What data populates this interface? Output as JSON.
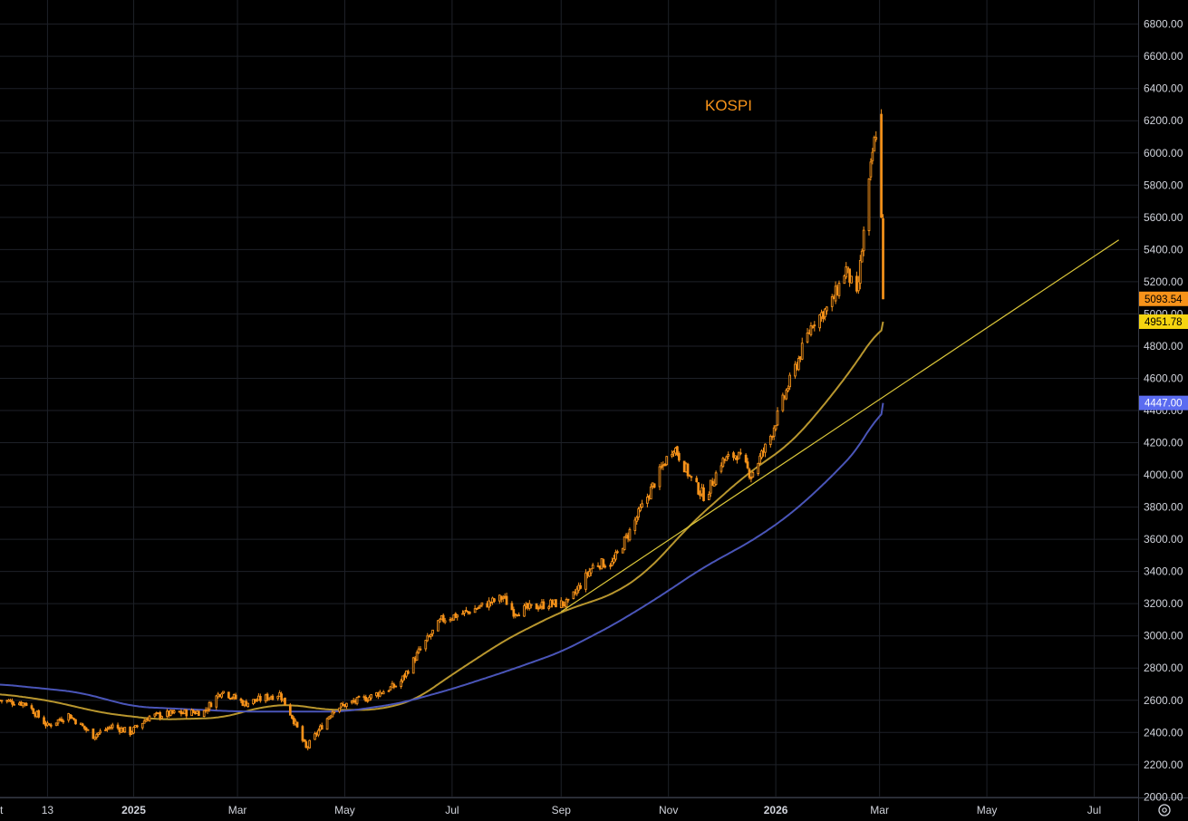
{
  "chart_data": {
    "type": "candlestick",
    "annotation": "KOSPI",
    "y_ticks": [
      2000,
      2200,
      2400,
      2600,
      2800,
      3000,
      3200,
      3400,
      3600,
      3800,
      4000,
      4200,
      4400,
      4600,
      4800,
      5000,
      5200,
      5400,
      5600,
      5800,
      6000,
      6200,
      6400,
      6600,
      6800
    ],
    "y_tick_labels": [
      "2000.00",
      "2200.00",
      "2400.00",
      "2600.00",
      "2800.00",
      "3000.00",
      "3200.00",
      "3400.00",
      "3600.00",
      "3800.00",
      "4000.00",
      "4200.00",
      "4400.00",
      "4600.00",
      "4800.00",
      "5000.00",
      "5200.00",
      "5400.00",
      "5600.00",
      "5800.00",
      "6000.00",
      "6200.00",
      "6400.00",
      "6600.00",
      "6800.00"
    ],
    "ylim": [
      1850,
      6950
    ],
    "xlim": [
      "2024-10-17",
      "2026-07-26"
    ],
    "x_ticks": [
      {
        "date": "2024-10-15",
        "label": "t",
        "bold": false
      },
      {
        "date": "2024-11-13",
        "label": "13",
        "bold": false
      },
      {
        "date": "2025-01-01",
        "label": "2025",
        "bold": true
      },
      {
        "date": "2025-03-01",
        "label": "Mar",
        "bold": false
      },
      {
        "date": "2025-05-01",
        "label": "May",
        "bold": false
      },
      {
        "date": "2025-07-01",
        "label": "Jul",
        "bold": false
      },
      {
        "date": "2025-09-01",
        "label": "Sep",
        "bold": false
      },
      {
        "date": "2025-11-01",
        "label": "Nov",
        "bold": false
      },
      {
        "date": "2026-01-01",
        "label": "2026",
        "bold": true
      },
      {
        "date": "2026-03-01",
        "label": "Mar",
        "bold": false
      },
      {
        "date": "2026-05-01",
        "label": "May",
        "bold": false
      },
      {
        "date": "2026-07-01",
        "label": "Jul",
        "bold": false
      }
    ],
    "price_path": [
      [
        "2024-10-17",
        2600
      ],
      [
        "2024-11-01",
        2580
      ],
      [
        "2024-11-13",
        2440
      ],
      [
        "2024-11-25",
        2510
      ],
      [
        "2024-12-09",
        2380
      ],
      [
        "2024-12-20",
        2440
      ],
      [
        "2024-12-30",
        2400
      ],
      [
        "2025-01-10",
        2500
      ],
      [
        "2025-01-25",
        2520
      ],
      [
        "2025-02-10",
        2530
      ],
      [
        "2025-02-20",
        2660
      ],
      [
        "2025-03-05",
        2580
      ],
      [
        "2025-03-25",
        2640
      ],
      [
        "2025-04-01",
        2500
      ],
      [
        "2025-04-09",
        2300
      ],
      [
        "2025-04-25",
        2550
      ],
      [
        "2025-05-15",
        2620
      ],
      [
        "2025-06-01",
        2700
      ],
      [
        "2025-06-12",
        2900
      ],
      [
        "2025-06-25",
        3100
      ],
      [
        "2025-07-10",
        3150
      ],
      [
        "2025-07-30",
        3240
      ],
      [
        "2025-08-05",
        3150
      ],
      [
        "2025-08-25",
        3200
      ],
      [
        "2025-09-05",
        3200
      ],
      [
        "2025-09-20",
        3450
      ],
      [
        "2025-09-30",
        3450
      ],
      [
        "2025-10-10",
        3650
      ],
      [
        "2025-10-30",
        4080
      ],
      [
        "2025-11-04",
        4180
      ],
      [
        "2025-11-15",
        3950
      ],
      [
        "2025-11-22",
        3860
      ],
      [
        "2025-12-01",
        4080
      ],
      [
        "2025-12-10",
        4130
      ],
      [
        "2025-12-18",
        4000
      ],
      [
        "2025-12-28",
        4210
      ],
      [
        "2026-01-08",
        4550
      ],
      [
        "2026-01-22",
        4950
      ],
      [
        "2026-02-01",
        5050
      ],
      [
        "2026-02-10",
        5280
      ],
      [
        "2026-02-16",
        5100
      ],
      [
        "2026-02-20",
        5500
      ],
      [
        "2026-02-25",
        6000
      ],
      [
        "2026-02-28",
        6200
      ],
      [
        "2026-03-01",
        6100
      ],
      [
        "2026-03-02",
        5600
      ],
      [
        "2026-03-03",
        5093.54
      ]
    ],
    "series": [
      {
        "name": "",
        "color": "#b8962e",
        "last_value": 4951.78,
        "points": [
          [
            "2024-10-17",
            2640
          ],
          [
            "2024-11-13",
            2600
          ],
          [
            "2024-12-15",
            2520
          ],
          [
            "2025-01-15",
            2480
          ],
          [
            "2025-02-20",
            2490
          ],
          [
            "2025-03-15",
            2560
          ],
          [
            "2025-04-01",
            2575
          ],
          [
            "2025-04-20",
            2540
          ],
          [
            "2025-05-20",
            2540
          ],
          [
            "2025-06-10",
            2600
          ],
          [
            "2025-07-01",
            2760
          ],
          [
            "2025-08-01",
            2980
          ],
          [
            "2025-09-01",
            3150
          ],
          [
            "2025-10-01",
            3260
          ],
          [
            "2025-10-20",
            3400
          ],
          [
            "2025-11-15",
            3710
          ],
          [
            "2025-12-15",
            4000
          ],
          [
            "2026-01-10",
            4200
          ],
          [
            "2026-02-01",
            4480
          ],
          [
            "2026-02-20",
            4760
          ],
          [
            "2026-03-03",
            4951.78
          ]
        ]
      },
      {
        "name": "",
        "color": "#4a55b8",
        "last_value": 4447.0,
        "points": [
          [
            "2024-10-17",
            2700
          ],
          [
            "2024-12-01",
            2650
          ],
          [
            "2025-01-01",
            2560
          ],
          [
            "2025-03-01",
            2530
          ],
          [
            "2025-05-01",
            2530
          ],
          [
            "2025-06-01",
            2580
          ],
          [
            "2025-07-01",
            2670
          ],
          [
            "2025-08-01",
            2780
          ],
          [
            "2025-09-01",
            2900
          ],
          [
            "2025-10-01",
            3070
          ],
          [
            "2025-10-25",
            3230
          ],
          [
            "2025-11-20",
            3420
          ],
          [
            "2025-12-20",
            3600
          ],
          [
            "2026-01-10",
            3760
          ],
          [
            "2026-02-01",
            3980
          ],
          [
            "2026-02-20",
            4200
          ],
          [
            "2026-03-03",
            4447.0
          ]
        ]
      },
      {
        "name": "",
        "color": "#ddc83a",
        "points": [
          [
            "2025-09-01",
            3150
          ],
          [
            "2026-07-15",
            5460
          ]
        ]
      }
    ],
    "last_price": 5093.54,
    "last_price_label": "5093.54",
    "ma1_label": "4951.78",
    "ma2_label": "4447.00"
  },
  "colors": {
    "background": "#000000",
    "candle": "#f7931a",
    "grid": "#1e2128",
    "axis_text": "#d1d4dc"
  },
  "icons": {
    "settings": "gear-icon"
  }
}
